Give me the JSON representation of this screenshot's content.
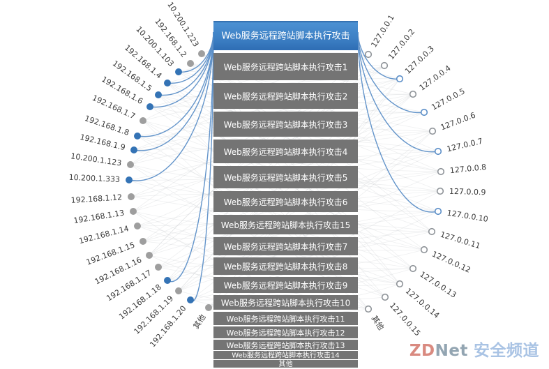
{
  "diagram": {
    "left_nodes": [
      {
        "label": "10.200.1.223",
        "active": false
      },
      {
        "label": "192.168.1.2",
        "active": false
      },
      {
        "label": "10.200.1.103",
        "active": true
      },
      {
        "label": "192.168.1.4",
        "active": true
      },
      {
        "label": "192.168.1.5",
        "active": true
      },
      {
        "label": "192.168.1.6",
        "active": true
      },
      {
        "label": "192.168.1.7",
        "active": false
      },
      {
        "label": "192.168.1.8",
        "active": true
      },
      {
        "label": "192.168.1.9",
        "active": true
      },
      {
        "label": "10.200.1.123",
        "active": false
      },
      {
        "label": "10.200.1.333",
        "active": true
      },
      {
        "label": "192.168.1.12",
        "active": false
      },
      {
        "label": "192.168.1.13",
        "active": false
      },
      {
        "label": "192.168.1.14",
        "active": false
      },
      {
        "label": "192.168.1.15",
        "active": false
      },
      {
        "label": "192.168.1.16",
        "active": false
      },
      {
        "label": "192.168.1.17",
        "active": false
      },
      {
        "label": "192.168.1.18",
        "active": true
      },
      {
        "label": "192.168.1.19",
        "active": false
      },
      {
        "label": "192.168.1.20",
        "active": true
      },
      {
        "label": "其他",
        "active": false
      }
    ],
    "center_boxes": [
      {
        "label": "Web服务远程跨站脚本执行攻击",
        "highlighted": true
      },
      {
        "label": "Web服务远程跨站脚本执行攻击1",
        "highlighted": false
      },
      {
        "label": "Web服务远程跨站脚本执行攻击2",
        "highlighted": false
      },
      {
        "label": "Web服务远程跨站脚本执行攻击3",
        "highlighted": false
      },
      {
        "label": "Web服务远程跨站脚本执行攻击4",
        "highlighted": false
      },
      {
        "label": "Web服务远程跨站脚本执行攻击5",
        "highlighted": false
      },
      {
        "label": "Web服务远程跨站脚本执行攻击6",
        "highlighted": false
      },
      {
        "label": "Web服务远程跨站脚本执行攻击15",
        "highlighted": false
      },
      {
        "label": "Web服务远程跨站脚本执行攻击7",
        "highlighted": false
      },
      {
        "label": "Web服务远程跨站脚本执行攻击8",
        "highlighted": false
      },
      {
        "label": "Web服务远程跨站脚本执行攻击9",
        "highlighted": false
      },
      {
        "label": "Web服务远程跨站脚本执行攻击10",
        "highlighted": false
      },
      {
        "label": "Web服务远程跨站脚本执行攻击11",
        "highlighted": false
      },
      {
        "label": "Web服务远程跨站脚本执行攻击12",
        "highlighted": false
      },
      {
        "label": "Web服务远程跨站脚本执行攻击13",
        "highlighted": false
      },
      {
        "label": "Web服务远程跨站脚本执行攻击14",
        "highlighted": false
      },
      {
        "label": "其他",
        "highlighted": false
      }
    ],
    "right_nodes": [
      {
        "label": "127.0.0.1",
        "active": false
      },
      {
        "label": "127.0.0.2",
        "active": false
      },
      {
        "label": "127.0.0.3",
        "active": true
      },
      {
        "label": "127.0.0.4",
        "active": false
      },
      {
        "label": "127.0.0.5",
        "active": true
      },
      {
        "label": "127.0.0.6",
        "active": false
      },
      {
        "label": "127.0.0.7",
        "active": true
      },
      {
        "label": "127.0.0.8",
        "active": false
      },
      {
        "label": "127.0.0.9",
        "active": false
      },
      {
        "label": "127.0.0.10",
        "active": true
      },
      {
        "label": "127.0.0.11",
        "active": false
      },
      {
        "label": "127.0.0.12",
        "active": false
      },
      {
        "label": "127.0.0.13",
        "active": false
      },
      {
        "label": "127.0.0.14",
        "active": false
      },
      {
        "label": "127.0.0.15",
        "active": false
      },
      {
        "label": "其他",
        "active": false
      }
    ]
  },
  "watermark": {
    "brand_zd": "ZD",
    "brand_net": "Net",
    "channel": "安全频道"
  },
  "colors": {
    "accent_blue": "#3473b5",
    "edge_blue": "#5b8ec7",
    "inactive_gray": "#9e9e9e",
    "ring_gray": "#8e9398",
    "web_gray": "#c9ccd1",
    "box_gray": "#747474",
    "box_text": "#ffffff",
    "label_text": "#3a3a3a",
    "box_blue_edge": "#2d66a5",
    "box_blue_top": "#4b90d2",
    "box_blue_mid": "#3d80c4",
    "box_blue_bottom": "#2e6db4"
  }
}
